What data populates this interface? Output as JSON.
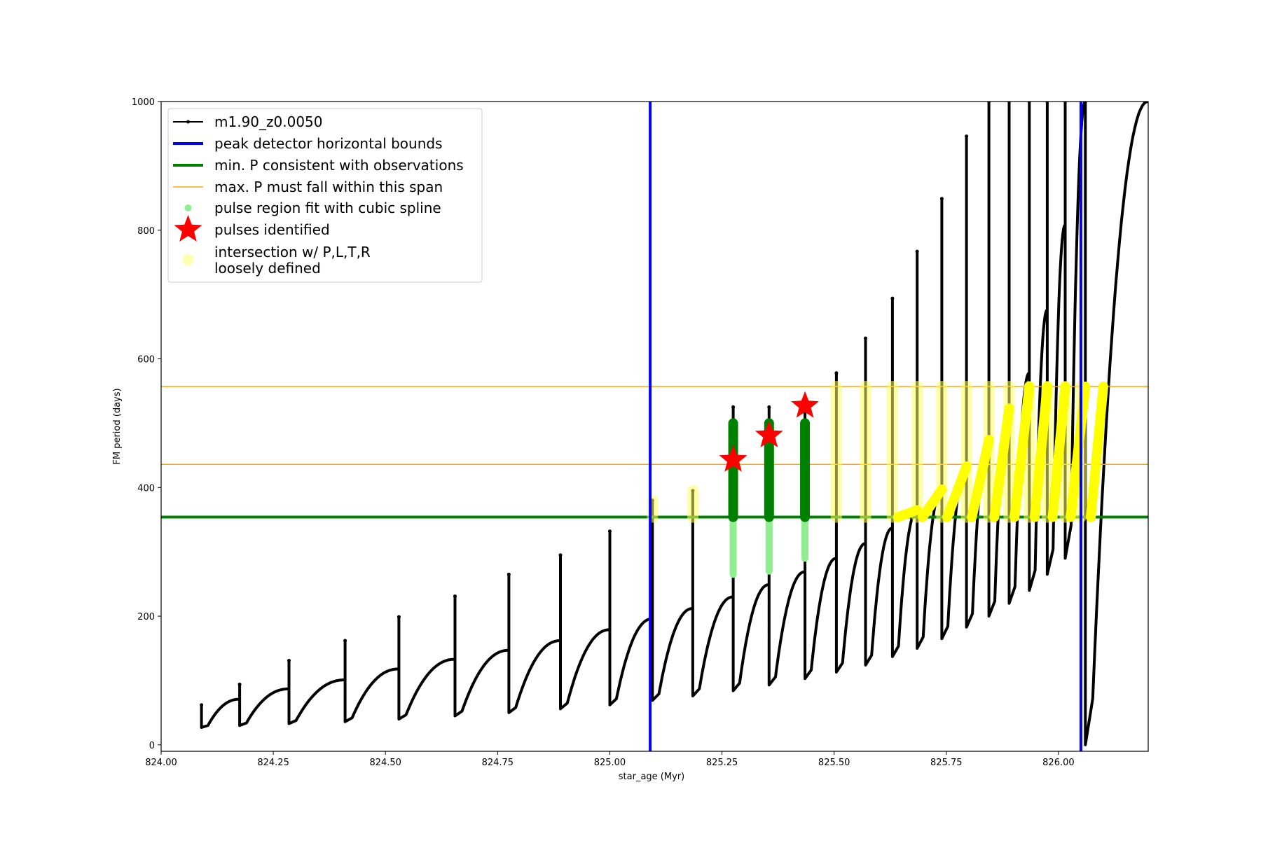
{
  "chart_data": {
    "type": "scatter",
    "xlabel": "star_age (Myr)",
    "ylabel": "FM period (days)",
    "xlim": [
      824.0,
      826.2
    ],
    "ylim": [
      -10,
      1000
    ],
    "xticks": [
      "824.00",
      "824.25",
      "824.50",
      "824.75",
      "825.00",
      "825.25",
      "825.50",
      "825.75",
      "826.00"
    ],
    "yticks": [
      "0",
      "200",
      "400",
      "600",
      "800",
      "1000"
    ],
    "grid": false,
    "legend_position": "top-left",
    "legend": [
      {
        "label": "m1.90_z0.0050",
        "kind": "line-dot",
        "color": "#000000"
      },
      {
        "label": "peak detector horizontal bounds",
        "kind": "line",
        "color": "#0000ff"
      },
      {
        "label": "min. P consistent with observations",
        "kind": "line",
        "color": "#008000"
      },
      {
        "label": "max. P must fall within this span",
        "kind": "thin-line",
        "color": "#ffa500"
      },
      {
        "label": "pulse region fit with cubic spline",
        "kind": "dot",
        "color": "#90ee90"
      },
      {
        "label": "pulses identified",
        "kind": "star",
        "color": "#ff0000"
      },
      {
        "label": "intersection w/ P,L,T,R\nloosely defined",
        "kind": "big-dot",
        "color": "#ffffb0"
      }
    ],
    "vertical_bounds": [
      825.09,
      826.05
    ],
    "min_period": 354,
    "max_period_span": [
      436,
      557
    ],
    "cycles": [
      {
        "start": 824.09,
        "base": 27,
        "top": 71,
        "spike": 62
      },
      {
        "start": 824.175,
        "base": 30,
        "top": 87,
        "spike": 94
      },
      {
        "start": 824.285,
        "base": 33,
        "top": 101,
        "spike": 131
      },
      {
        "start": 824.41,
        "base": 36,
        "top": 118,
        "spike": 162
      },
      {
        "start": 824.53,
        "base": 40,
        "top": 133,
        "spike": 199
      },
      {
        "start": 824.655,
        "base": 45,
        "top": 147,
        "spike": 231
      },
      {
        "start": 824.775,
        "base": 50,
        "top": 162,
        "spike": 265
      },
      {
        "start": 824.89,
        "base": 56,
        "top": 179,
        "spike": 295
      },
      {
        "start": 825.0,
        "base": 62,
        "top": 196,
        "spike": 332
      },
      {
        "start": 825.095,
        "base": 69,
        "top": 212,
        "spike": 380
      },
      {
        "start": 825.185,
        "base": 76,
        "top": 230,
        "spike": 395
      },
      {
        "start": 825.275,
        "base": 84,
        "top": 249,
        "spike": 525
      },
      {
        "start": 825.355,
        "base": 93,
        "top": 269,
        "spike": 525
      },
      {
        "start": 825.435,
        "base": 103,
        "top": 290,
        "spike": 525
      },
      {
        "start": 825.505,
        "base": 113,
        "top": 313,
        "spike": 578
      },
      {
        "start": 825.57,
        "base": 124,
        "top": 337,
        "spike": 632
      },
      {
        "start": 825.63,
        "base": 137,
        "top": 365,
        "spike": 694
      },
      {
        "start": 825.685,
        "base": 150,
        "top": 397,
        "spike": 767
      },
      {
        "start": 825.74,
        "base": 165,
        "top": 433,
        "spike": 849
      },
      {
        "start": 825.795,
        "base": 183,
        "top": 474,
        "spike": 946
      },
      {
        "start": 825.845,
        "base": 200,
        "top": 523,
        "spike": 1000
      },
      {
        "start": 825.89,
        "base": 220,
        "top": 578,
        "spike": 1000
      },
      {
        "start": 825.935,
        "base": 240,
        "top": 676,
        "spike": 1000
      },
      {
        "start": 825.975,
        "base": 265,
        "top": 808,
        "spike": 1000
      },
      {
        "start": 826.015,
        "base": 290,
        "top": 1000,
        "spike": 1000
      },
      {
        "start": 826.06,
        "base": 0,
        "top": 1000,
        "spike": 1000
      }
    ],
    "pulses_identified": [
      {
        "x": 825.275,
        "y": 443
      },
      {
        "x": 825.355,
        "y": 481
      },
      {
        "x": 825.435,
        "y": 527
      }
    ],
    "spline_regions": [
      {
        "x": 825.275,
        "y0": 265,
        "y1": 500
      },
      {
        "x": 825.355,
        "y0": 270,
        "y1": 500
      },
      {
        "x": 825.435,
        "y0": 290,
        "y1": 500
      }
    ],
    "yellow_spikes": [
      825.095,
      825.185,
      825.505,
      825.57,
      825.63,
      825.685,
      825.74,
      825.795,
      825.845,
      825.89,
      825.935,
      825.975,
      826.015,
      826.05
    ]
  }
}
